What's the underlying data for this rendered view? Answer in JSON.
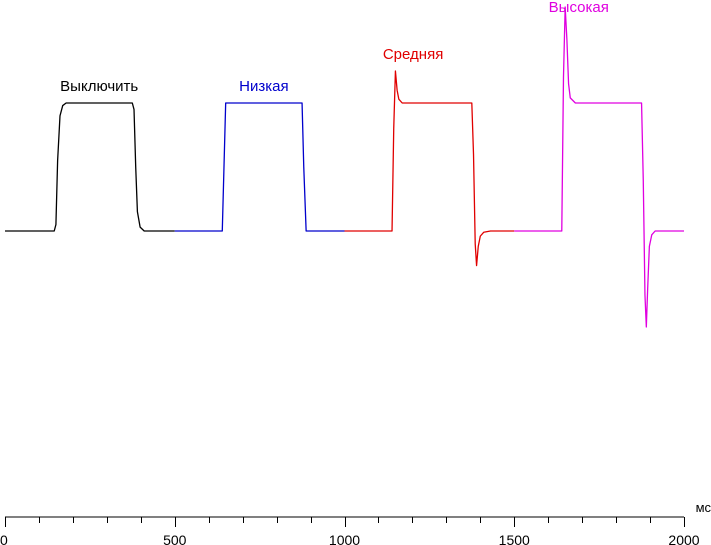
{
  "chart_data": {
    "type": "line",
    "xlabel": "",
    "x_unit": "мс",
    "ylabel": "",
    "xlim": [
      0,
      2000
    ],
    "ylim": [
      -2.3,
      1.75
    ],
    "x_major_ticks": [
      0,
      500,
      1000,
      1500,
      2000
    ],
    "x_minor_step": 100,
    "grid": false,
    "legend": "labels above each series",
    "series": [
      {
        "name": "Выключить",
        "color": "#000000",
        "points": [
          [
            0,
            0
          ],
          [
            145,
            0
          ],
          [
            150,
            0.05
          ],
          [
            155,
            0.55
          ],
          [
            162,
            0.9
          ],
          [
            170,
            0.98
          ],
          [
            180,
            1.0
          ],
          [
            375,
            1.0
          ],
          [
            380,
            0.95
          ],
          [
            385,
            0.5
          ],
          [
            390,
            0.15
          ],
          [
            398,
            0.03
          ],
          [
            410,
            0
          ],
          [
            500,
            0
          ]
        ]
      },
      {
        "name": "Низкая",
        "color": "#0000cc",
        "points": [
          [
            500,
            0
          ],
          [
            640,
            0
          ],
          [
            645,
            0.5
          ],
          [
            650,
            1.0
          ],
          [
            875,
            1.0
          ],
          [
            880,
            0.5
          ],
          [
            887,
            0
          ],
          [
            1000,
            0
          ]
        ]
      },
      {
        "name": "Средняя",
        "color": "#e00000",
        "points": [
          [
            1000,
            0
          ],
          [
            1140,
            0
          ],
          [
            1145,
            0.8
          ],
          [
            1150,
            1.25
          ],
          [
            1155,
            1.1
          ],
          [
            1160,
            1.03
          ],
          [
            1170,
            1.0
          ],
          [
            1375,
            1.0
          ],
          [
            1380,
            0.6
          ],
          [
            1385,
            -0.1
          ],
          [
            1389,
            -0.27
          ],
          [
            1394,
            -0.12
          ],
          [
            1400,
            -0.04
          ],
          [
            1410,
            -0.01
          ],
          [
            1430,
            0
          ],
          [
            1500,
            0
          ]
        ]
      },
      {
        "name": "Высокая",
        "color": "#e000e0",
        "points": [
          [
            1500,
            0
          ],
          [
            1640,
            0
          ],
          [
            1645,
            1.2
          ],
          [
            1650,
            1.75
          ],
          [
            1655,
            1.5
          ],
          [
            1660,
            1.15
          ],
          [
            1665,
            1.04
          ],
          [
            1680,
            1.0
          ],
          [
            1875,
            1.0
          ],
          [
            1880,
            0.4
          ],
          [
            1885,
            -0.5
          ],
          [
            1889,
            -0.75
          ],
          [
            1893,
            -0.45
          ],
          [
            1898,
            -0.12
          ],
          [
            1905,
            -0.03
          ],
          [
            1915,
            0
          ],
          [
            2000,
            0
          ]
        ]
      }
    ]
  }
}
